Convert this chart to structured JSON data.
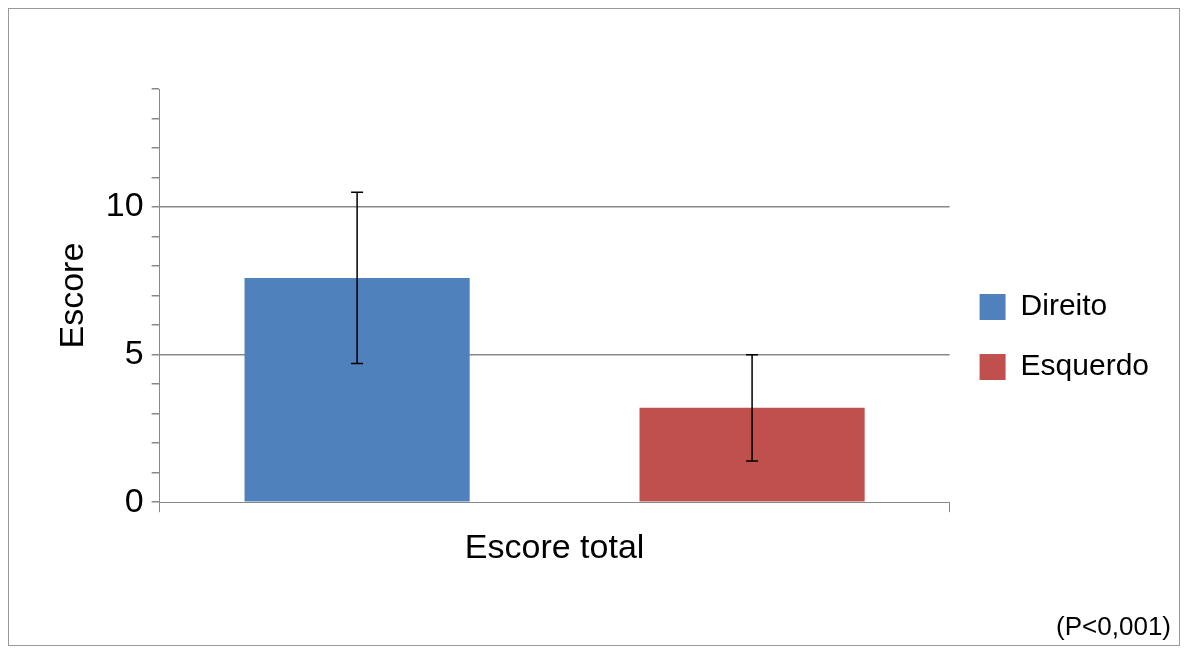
{
  "chart_data": {
    "type": "bar",
    "ylabel": "Escore",
    "categories": [
      "Escore total"
    ],
    "series": [
      {
        "name": "Direito",
        "color": "#4f81bd",
        "values": [
          7.6
        ],
        "errors": [
          2.9
        ]
      },
      {
        "name": "Esquerdo",
        "color": "#c0504d",
        "values": [
          3.2
        ],
        "errors": [
          1.8
        ]
      }
    ],
    "ylim": [
      0,
      14
    ],
    "yticks": [
      0,
      {
        "value": 1,
        "label": null
      },
      {
        "value": 2,
        "label": null
      },
      {
        "value": 3,
        "label": null
      },
      {
        "value": 4,
        "label": null
      },
      5,
      {
        "value": 6,
        "label": null
      },
      {
        "value": 7,
        "label": null
      },
      {
        "value": 8,
        "label": null
      },
      {
        "value": 9,
        "label": null
      },
      10,
      {
        "value": 11,
        "label": null
      },
      {
        "value": 12,
        "label": null
      },
      {
        "value": 13,
        "label": null
      },
      {
        "value": 14,
        "label": null
      }
    ],
    "grid": "y",
    "legend": "right",
    "annotations": [
      "(P<0,001)"
    ]
  }
}
